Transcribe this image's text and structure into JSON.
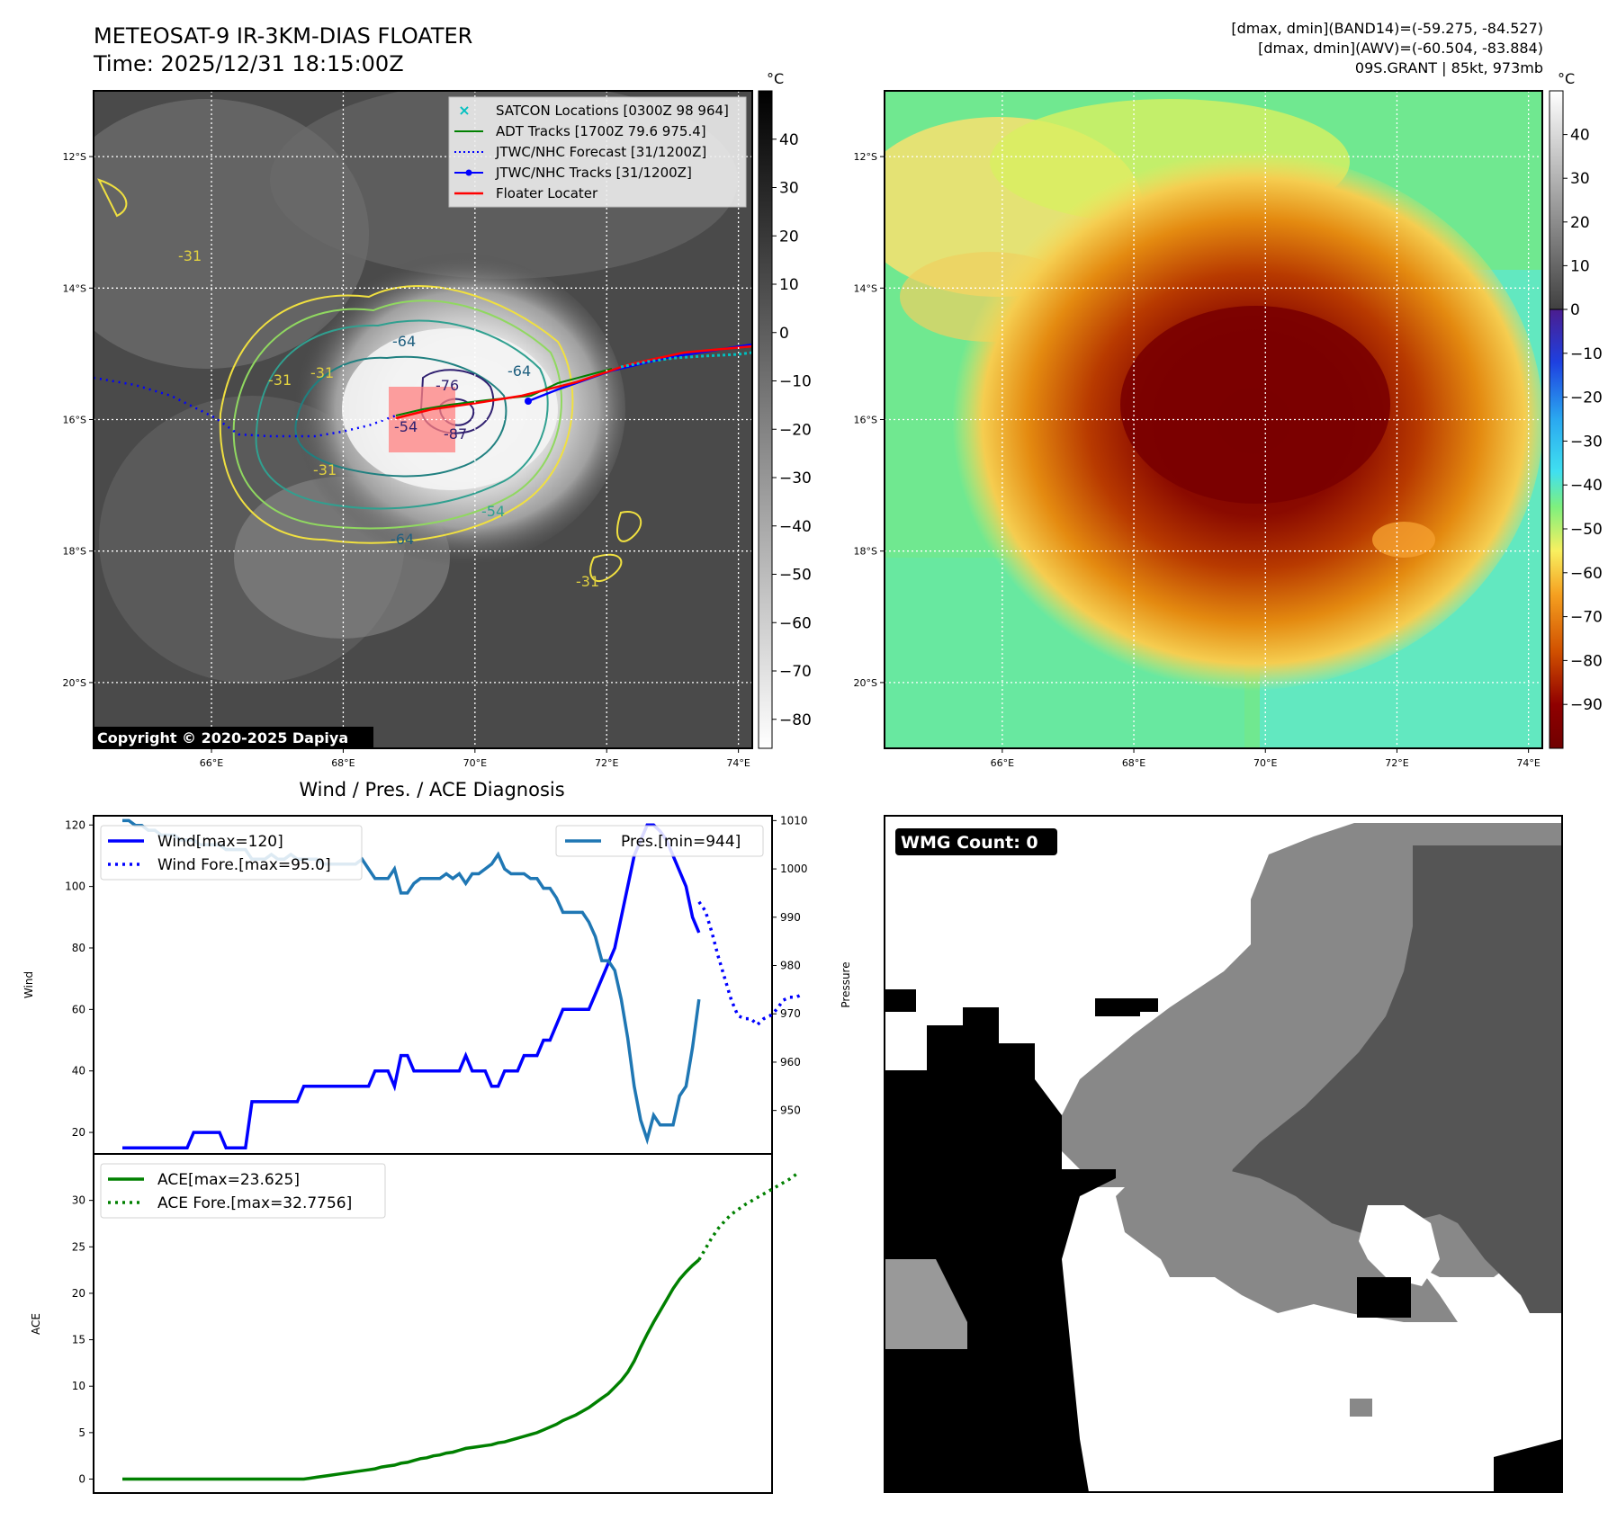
{
  "header": {
    "title_line1": "METEOSAT-9 IR-3KM-DIAS FLOATER",
    "title_line2": "Time: 2025/12/31 18:15:00Z",
    "stats_line1": "[dmax, dmin](BAND14)=(-59.275, -84.527)",
    "stats_line2": "[dmax, dmin](AWV)=(-60.504, -83.884)",
    "stats_line3": "09S.GRANT | 85kt, 973mb"
  },
  "ir_panel": {
    "lat_labels": [
      "12°S",
      "14°S",
      "16°S",
      "18°S",
      "20°S"
    ],
    "lon_labels": [
      "66°E",
      "68°E",
      "70°E",
      "72°E",
      "74°E"
    ],
    "legend": [
      "SATCON Locations [0300Z 98 964]",
      "ADT Tracks [1700Z 79.6 975.4]",
      "JTWC/NHC Forecast [31/1200Z]",
      "JTWC/NHC Tracks [31/1200Z]",
      "Floater Locater"
    ],
    "contour_labels": [
      "-31",
      "-31",
      "-31",
      "-31",
      "-31",
      "-64",
      "-64",
      "-64",
      "-76",
      "-87",
      "-54",
      "-54"
    ],
    "copyright": "Copyright © 2020-2025 Dapiya",
    "colorbar_unit": "°C",
    "colorbar_ticks": [
      "40",
      "30",
      "20",
      "10",
      "0",
      "−10",
      "−20",
      "−30",
      "−40",
      "−50",
      "−60",
      "−70",
      "−80"
    ],
    "colors": {
      "track": "#0000ff",
      "adt": "#008000",
      "locator": "#ff0000",
      "satcon": "#00c0c0"
    }
  },
  "awv_panel": {
    "lat_labels": [
      "12°S",
      "14°S",
      "16°S",
      "18°S",
      "20°S"
    ],
    "lon_labels": [
      "66°E",
      "68°E",
      "70°E",
      "72°E",
      "74°E"
    ],
    "colorbar_unit": "°C",
    "colorbar_ticks": [
      "40",
      "30",
      "20",
      "10",
      "0",
      "−10",
      "−20",
      "−30",
      "−40",
      "−50",
      "−60",
      "−70",
      "−80",
      "−90"
    ]
  },
  "wmg_panel": {
    "label": "WMG Count: 0"
  },
  "chart_data": [
    {
      "type": "line",
      "title": "Wind / Pres. / ACE Diagnosis",
      "xlabel": "",
      "ylabel": "Wind",
      "ylabel_right": "Pressure",
      "ylim": [
        13,
        123
      ],
      "y_ticks": [
        20,
        40,
        60,
        80,
        100,
        120
      ],
      "ylim_right": [
        941,
        1011
      ],
      "y_ticks_right": [
        950,
        960,
        970,
        980,
        990,
        1000,
        1010
      ],
      "series": [
        {
          "name": "Wind[max=120]",
          "axis": "left",
          "style": "solid",
          "color": "#0000ff",
          "values": [
            15,
            15,
            15,
            15,
            15,
            15,
            15,
            15,
            15,
            15,
            15,
            20,
            20,
            20,
            20,
            20,
            15,
            15,
            15,
            15,
            30,
            30,
            30,
            30,
            30,
            30,
            30,
            30,
            35,
            35,
            35,
            35,
            35,
            35,
            35,
            35,
            35,
            35,
            35,
            40,
            40,
            40,
            35,
            45,
            45,
            40,
            40,
            40,
            40,
            40,
            40,
            40,
            40,
            45,
            40,
            40,
            40,
            35,
            35,
            40,
            40,
            40,
            45,
            45,
            45,
            50,
            50,
            55,
            60,
            60,
            60,
            60,
            60,
            65,
            70,
            75,
            80,
            90,
            100,
            110,
            115,
            120,
            120,
            118,
            115,
            110,
            105,
            100,
            90,
            85
          ]
        },
        {
          "name": "Wind Fore.[max=95.0]",
          "axis": "left",
          "style": "dotted",
          "color": "#0000ff",
          "x_start": 89,
          "values": [
            95,
            92,
            85,
            77,
            70,
            63,
            58,
            57,
            57,
            55,
            57,
            58,
            60,
            63,
            64,
            64,
            65
          ]
        },
        {
          "name": "Pres.[min=944]",
          "axis": "right",
          "style": "solid",
          "color": "#1f77b4",
          "values": [
            1010,
            1010,
            1009,
            1009,
            1008,
            1008,
            1007,
            1007,
            1007,
            1006,
            1006,
            1006,
            1005,
            1005,
            1005,
            1005,
            1004,
            1004,
            1004,
            1004,
            1002,
            1002,
            1002,
            1003,
            1002,
            1002,
            1003,
            1002,
            1002,
            1002,
            1002,
            1001,
            1001,
            1001,
            1001,
            1001,
            1001,
            1002,
            1000,
            998,
            998,
            998,
            1000,
            995,
            995,
            997,
            998,
            998,
            998,
            998,
            999,
            998,
            999,
            997,
            999,
            999,
            1000,
            1001,
            1003,
            1000,
            999,
            999,
            999,
            998,
            998,
            996,
            996,
            994,
            991,
            991,
            991,
            991,
            989,
            986,
            981,
            981,
            979,
            973,
            965,
            955,
            948,
            944,
            949,
            947,
            947,
            947,
            953,
            955,
            963,
            973
          ]
        }
      ]
    },
    {
      "type": "line",
      "ylabel": "ACE",
      "ylim": [
        -1.5,
        35
      ],
      "y_ticks": [
        0,
        5,
        10,
        15,
        20,
        25,
        30
      ],
      "series": [
        {
          "name": "ACE[max=23.625]",
          "style": "solid",
          "color": "#008000",
          "values": [
            0,
            0,
            0,
            0,
            0,
            0,
            0,
            0,
            0,
            0,
            0,
            0,
            0,
            0,
            0,
            0,
            0,
            0,
            0,
            0,
            0,
            0,
            0,
            0,
            0,
            0,
            0,
            0,
            0,
            0.1,
            0.2,
            0.3,
            0.4,
            0.5,
            0.6,
            0.7,
            0.8,
            0.9,
            1.0,
            1.1,
            1.3,
            1.4,
            1.5,
            1.7,
            1.8,
            2.0,
            2.2,
            2.3,
            2.5,
            2.6,
            2.8,
            2.9,
            3.1,
            3.3,
            3.4,
            3.5,
            3.6,
            3.7,
            3.9,
            4.0,
            4.2,
            4.4,
            4.6,
            4.8,
            5.0,
            5.3,
            5.6,
            5.9,
            6.3,
            6.6,
            6.9,
            7.3,
            7.7,
            8.2,
            8.7,
            9.2,
            9.9,
            10.6,
            11.5,
            12.7,
            14.2,
            15.6,
            16.9,
            18.1,
            19.3,
            20.5,
            21.5,
            22.3,
            23.0,
            23.6
          ]
        },
        {
          "name": "ACE Fore.[max=32.7756]",
          "style": "dotted",
          "color": "#008000",
          "x_start": 89,
          "values": [
            23.6,
            24.8,
            26.0,
            27.0,
            27.8,
            28.5,
            29.0,
            29.5,
            29.9,
            30.3,
            30.7,
            31.1,
            31.5,
            31.9,
            32.3,
            32.8
          ]
        }
      ]
    }
  ]
}
